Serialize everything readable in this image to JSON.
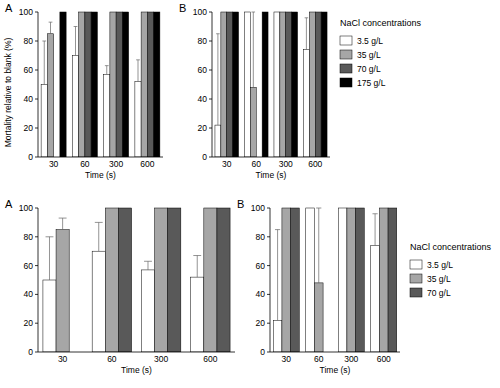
{
  "chart_data": [
    {
      "type": "bar",
      "title": "A",
      "y_label": "Mortality relative to blank (%)",
      "x_label": "Time (s)",
      "categories": [
        "30",
        "60",
        "300",
        "600"
      ],
      "ylim": [
        0,
        100
      ],
      "yticks": [
        0,
        20,
        40,
        60,
        80,
        100
      ],
      "series": [
        {
          "name": "3.5 g/L",
          "color": "#ffffff",
          "values": [
            50,
            70,
            57,
            52
          ],
          "errors": [
            30,
            20,
            6,
            15
          ]
        },
        {
          "name": "35 g/L",
          "color": "#a6a6a6",
          "values": [
            85,
            100,
            100,
            100
          ],
          "errors": [
            8,
            0,
            0,
            0
          ]
        },
        {
          "name": "70 g/L",
          "color": "#595959",
          "values": [
            0,
            100,
            100,
            100
          ],
          "errors": [
            0,
            0,
            0,
            0
          ]
        },
        {
          "name": "175 g/L",
          "color": "#000000",
          "values": [
            100,
            100,
            100,
            100
          ],
          "errors": [
            0,
            0,
            0,
            0
          ]
        }
      ]
    },
    {
      "type": "bar",
      "title": "B",
      "x_label": "Time (s)",
      "categories": [
        "30",
        "60",
        "300",
        "600"
      ],
      "ylim": [
        0,
        100
      ],
      "yticks": [
        0,
        20,
        40,
        60,
        80,
        100
      ],
      "legend": "right",
      "legend_title": "NaCl concentrations",
      "series": [
        {
          "name": "3.5 g/L",
          "color": "#ffffff",
          "values": [
            22,
            100,
            100,
            74
          ],
          "errors": [
            63,
            0,
            0,
            22
          ]
        },
        {
          "name": "35 g/L",
          "color": "#a6a6a6",
          "values": [
            100,
            48,
            100,
            100
          ],
          "errors": [
            0,
            52,
            0,
            0
          ]
        },
        {
          "name": "70 g/L",
          "color": "#595959",
          "values": [
            100,
            0,
            100,
            100
          ],
          "errors": [
            0,
            0,
            0,
            0
          ]
        },
        {
          "name": "175 g/L",
          "color": "#000000",
          "values": [
            100,
            100,
            100,
            100
          ],
          "errors": [
            0,
            0,
            0,
            0
          ]
        }
      ]
    },
    {
      "type": "bar",
      "title": "A",
      "x_label": "Time (s)",
      "categories": [
        "30",
        "60",
        "300",
        "600"
      ],
      "ylim": [
        0,
        100
      ],
      "yticks": [
        0,
        20,
        40,
        60,
        80,
        100
      ],
      "series": [
        {
          "name": "3.5 g/L",
          "color": "#ffffff",
          "values": [
            50,
            70,
            57,
            52
          ],
          "errors": [
            30,
            20,
            6,
            15
          ]
        },
        {
          "name": "35 g/L",
          "color": "#a6a6a6",
          "values": [
            85,
            100,
            100,
            100
          ],
          "errors": [
            8,
            0,
            0,
            0
          ]
        },
        {
          "name": "70 g/L",
          "color": "#595959",
          "values": [
            0,
            100,
            100,
            100
          ],
          "errors": [
            0,
            0,
            0,
            0
          ]
        }
      ]
    },
    {
      "type": "bar",
      "title": "B",
      "x_label": "Time (s)",
      "categories": [
        "30",
        "60",
        "300",
        "600"
      ],
      "ylim": [
        0,
        100
      ],
      "yticks": [
        0,
        20,
        40,
        60,
        80,
        100
      ],
      "legend": "right",
      "legend_title": "NaCl concentrations",
      "series": [
        {
          "name": "3.5 g/L",
          "color": "#ffffff",
          "values": [
            22,
            100,
            100,
            74
          ],
          "errors": [
            63,
            0,
            0,
            22
          ]
        },
        {
          "name": "35 g/L",
          "color": "#a6a6a6",
          "values": [
            100,
            48,
            100,
            100
          ],
          "errors": [
            0,
            52,
            0,
            0
          ]
        },
        {
          "name": "70 g/L",
          "color": "#595959",
          "values": [
            100,
            0,
            100,
            100
          ],
          "errors": [
            0,
            0,
            0,
            0
          ]
        }
      ]
    }
  ]
}
